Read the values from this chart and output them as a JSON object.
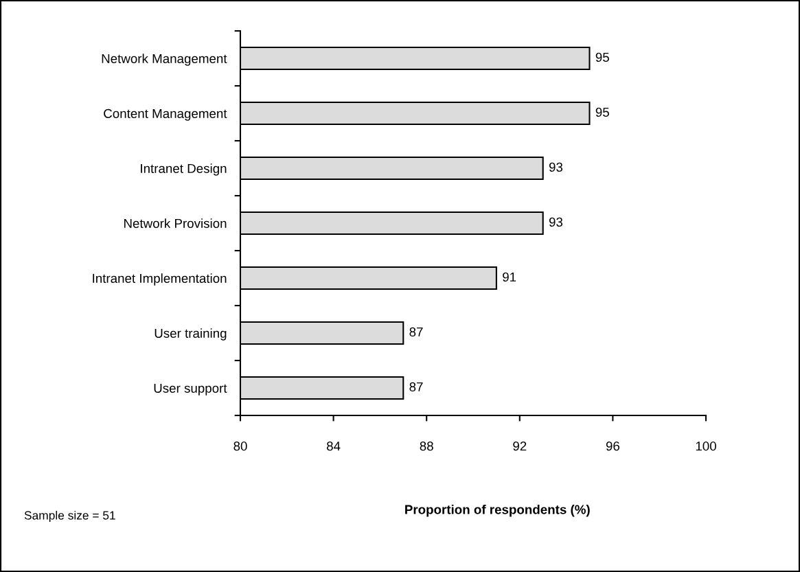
{
  "chart_data": {
    "type": "bar",
    "orientation": "horizontal",
    "xlabel": "Proportion of respondents (%)",
    "categories": [
      "Network Management",
      "Content Management",
      "Intranet Design",
      "Network Provision",
      "Intranet Implementation",
      "User training",
      "User support"
    ],
    "values": [
      95,
      95,
      93,
      93,
      91,
      87,
      87
    ],
    "color": "#dcdcdc",
    "data_labels": true,
    "xlim": [
      80,
      100
    ],
    "xticks": [
      80,
      84,
      88,
      92,
      96,
      100
    ],
    "grid": false,
    "legend": false,
    "annotations": [
      "Sample size = 51"
    ]
  }
}
